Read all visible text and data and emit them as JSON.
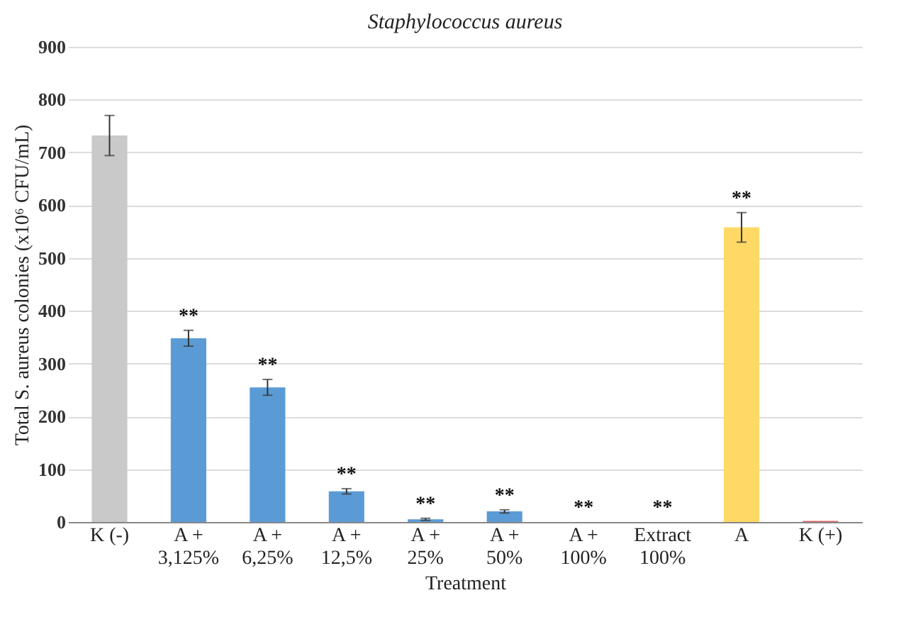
{
  "chart_data": {
    "type": "bar",
    "title": "Staphylococcus aureus",
    "xlabel": "Treatment",
    "ylabel": "Total S. aureus colonies (x10⁶ CFU/mL)",
    "categories": [
      "K (-)",
      "A + 3,125%",
      "A + 6,25%",
      "A + 12,5%",
      "A + 25%",
      "A + 50%",
      "A + 100%",
      "Extract 100%",
      "A",
      "K (+)"
    ],
    "values": [
      732,
      348,
      255,
      58,
      5,
      20,
      0,
      0,
      558,
      2
    ],
    "errors": [
      38,
      15,
      15,
      5,
      2,
      3,
      null,
      null,
      28,
      null
    ],
    "colors": [
      "#c9c9c9",
      "#5b9bd5",
      "#5b9bd5",
      "#5b9bd5",
      "#5b9bd5",
      "#5b9bd5",
      "#5b9bd5",
      "#5b9bd5",
      "#ffd966",
      "#e06666"
    ],
    "value_labels": [
      null,
      "**",
      "**",
      "**",
      "**",
      "**",
      "**",
      "**",
      "**",
      null
    ],
    "ylim": [
      0,
      900
    ],
    "yticks": [
      0,
      100,
      200,
      300,
      400,
      500,
      600,
      700,
      800,
      900
    ],
    "grid": "y"
  }
}
